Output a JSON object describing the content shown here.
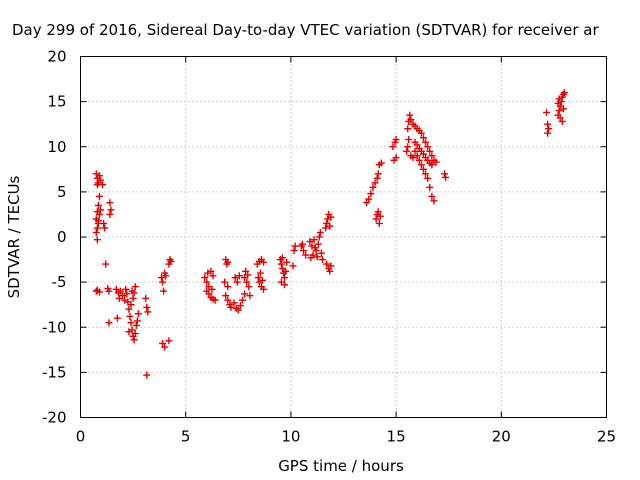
{
  "chart_data": {
    "type": "scatter",
    "title": "Day 299 of 2016, Sidereal Day-to-day VTEC variation (SDTVAR) for receiver ar",
    "xlabel": "GPS time / hours",
    "ylabel": "SDTVAR / TECUs",
    "xlim": [
      0,
      25
    ],
    "ylim": [
      -20,
      20
    ],
    "xticks": [
      "0",
      "5",
      "10",
      "15",
      "20",
      "25"
    ],
    "yticks": [
      "20",
      "15",
      "10",
      "5",
      "0",
      "-5",
      "-10",
      "-15",
      "-20"
    ],
    "grid": true,
    "marker": "plus",
    "color": "#e00000",
    "series": [
      {
        "points": [
          [
            0.75,
            7.0
          ],
          [
            0.8,
            6.5
          ],
          [
            0.85,
            6.0
          ],
          [
            0.9,
            6.8
          ],
          [
            0.95,
            6.3
          ],
          [
            0.8,
            5.8
          ],
          [
            0.9,
            4.5
          ],
          [
            0.85,
            3.5
          ],
          [
            0.8,
            2.8
          ],
          [
            0.75,
            2.0
          ],
          [
            0.85,
            1.5
          ],
          [
            0.8,
            1.0
          ],
          [
            0.75,
            0.5
          ],
          [
            0.8,
            -0.3
          ],
          [
            0.85,
            1.8
          ],
          [
            0.9,
            2.5
          ],
          [
            0.95,
            3.0
          ],
          [
            0.8,
            -5.9
          ],
          [
            0.9,
            -6.1
          ],
          [
            0.75,
            -6.0
          ],
          [
            1.05,
            5.8
          ],
          [
            1.1,
            1.5
          ],
          [
            1.15,
            1.0
          ],
          [
            1.2,
            -3.0
          ],
          [
            1.3,
            -5.7
          ],
          [
            1.35,
            -6.0
          ],
          [
            1.4,
            3.8
          ],
          [
            1.45,
            3.0
          ],
          [
            1.4,
            2.5
          ],
          [
            1.35,
            -9.5
          ],
          [
            1.7,
            -5.8
          ],
          [
            1.8,
            -6.2
          ],
          [
            1.85,
            -6.8
          ],
          [
            1.75,
            -9.0
          ],
          [
            1.9,
            -6.0
          ],
          [
            2.0,
            -6.5
          ],
          [
            2.1,
            -7.0
          ],
          [
            2.15,
            -5.8
          ],
          [
            2.2,
            -6.3
          ],
          [
            2.25,
            -7.2
          ],
          [
            2.3,
            -8.0
          ],
          [
            2.35,
            -8.8
          ],
          [
            2.4,
            -9.5
          ],
          [
            2.45,
            -10.3
          ],
          [
            2.5,
            -11.0
          ],
          [
            2.55,
            -11.4
          ],
          [
            2.6,
            -10.7
          ],
          [
            2.65,
            -9.8
          ],
          [
            2.7,
            -9.3
          ],
          [
            2.75,
            -8.5
          ],
          [
            2.5,
            -6.8
          ],
          [
            2.55,
            -6.2
          ],
          [
            2.6,
            -5.5
          ],
          [
            2.4,
            -7.5
          ],
          [
            2.45,
            -6.0
          ],
          [
            2.3,
            -10.5
          ],
          [
            3.1,
            -6.8
          ],
          [
            3.15,
            -7.8
          ],
          [
            3.2,
            -8.3
          ],
          [
            3.15,
            -15.3
          ],
          [
            3.85,
            -4.5
          ],
          [
            3.9,
            -5.0
          ],
          [
            3.95,
            -6.0
          ],
          [
            4.0,
            -4.0
          ],
          [
            4.05,
            -4.3
          ],
          [
            3.9,
            -11.8
          ],
          [
            4.0,
            -12.2
          ],
          [
            4.2,
            -11.5
          ],
          [
            4.2,
            -3.0
          ],
          [
            4.25,
            -2.5
          ],
          [
            4.3,
            -2.7
          ],
          [
            5.9,
            -4.5
          ],
          [
            6.0,
            -5.0
          ],
          [
            6.1,
            -5.5
          ],
          [
            6.05,
            -4.0
          ],
          [
            6.2,
            -3.8
          ],
          [
            6.3,
            -4.3
          ],
          [
            6.1,
            -6.3
          ],
          [
            6.2,
            -6.7
          ],
          [
            6.3,
            -6.9
          ],
          [
            6.4,
            -7.0
          ],
          [
            6.0,
            -6.0
          ],
          [
            6.25,
            -5.8
          ],
          [
            6.9,
            -2.5
          ],
          [
            6.95,
            -3.0
          ],
          [
            7.0,
            -2.8
          ],
          [
            6.85,
            -5.0
          ],
          [
            7.0,
            -5.5
          ],
          [
            6.9,
            -6.5
          ],
          [
            7.0,
            -7.0
          ],
          [
            7.1,
            -7.5
          ],
          [
            7.15,
            -7.8
          ],
          [
            7.3,
            -7.3
          ],
          [
            7.4,
            -7.9
          ],
          [
            7.5,
            -8.1
          ],
          [
            7.6,
            -7.6
          ],
          [
            7.7,
            -7.0
          ],
          [
            7.35,
            -4.5
          ],
          [
            7.45,
            -5.0
          ],
          [
            7.55,
            -4.3
          ],
          [
            7.8,
            -4.5
          ],
          [
            7.9,
            -5.0
          ],
          [
            8.0,
            -5.5
          ],
          [
            7.85,
            -3.8
          ],
          [
            7.95,
            -4.2
          ],
          [
            8.05,
            -6.5
          ],
          [
            7.8,
            -6.3
          ],
          [
            8.4,
            -3.0
          ],
          [
            8.5,
            -2.7
          ],
          [
            8.6,
            -2.5
          ],
          [
            8.7,
            -2.8
          ],
          [
            8.45,
            -4.5
          ],
          [
            8.5,
            -5.0
          ],
          [
            8.6,
            -5.5
          ],
          [
            8.7,
            -5.8
          ],
          [
            8.55,
            -4.0
          ],
          [
            8.65,
            -4.8
          ],
          [
            9.5,
            -2.5
          ],
          [
            9.55,
            -3.0
          ],
          [
            9.6,
            -3.5
          ],
          [
            9.65,
            -4.0
          ],
          [
            9.7,
            -4.5
          ],
          [
            9.55,
            -5.0
          ],
          [
            9.75,
            -3.8
          ],
          [
            9.8,
            -2.8
          ],
          [
            9.6,
            -2.3
          ],
          [
            9.7,
            -5.3
          ],
          [
            10.2,
            -1.0
          ],
          [
            10.15,
            -1.5
          ],
          [
            10.1,
            -3.2
          ],
          [
            10.5,
            -1.0
          ],
          [
            10.6,
            -1.5
          ],
          [
            10.55,
            -0.8
          ],
          [
            10.7,
            -2.0
          ],
          [
            10.9,
            -0.5
          ],
          [
            11.0,
            -1.0
          ],
          [
            11.1,
            -0.3
          ],
          [
            11.05,
            -2.0
          ],
          [
            11.2,
            -1.5
          ],
          [
            11.3,
            -0.8
          ],
          [
            11.35,
            0.0
          ],
          [
            11.4,
            0.5
          ],
          [
            11.45,
            -1.8
          ],
          [
            11.5,
            -2.5
          ],
          [
            11.25,
            -2.2
          ],
          [
            11.15,
            -1.2
          ],
          [
            10.95,
            -2.3
          ],
          [
            11.65,
            1.0
          ],
          [
            11.7,
            1.5
          ],
          [
            11.75,
            2.0
          ],
          [
            11.8,
            2.5
          ],
          [
            11.85,
            1.2
          ],
          [
            11.9,
            2.2
          ],
          [
            11.7,
            -3.0
          ],
          [
            11.8,
            -3.5
          ],
          [
            11.85,
            -3.8
          ],
          [
            11.9,
            -3.2
          ],
          [
            13.6,
            3.8
          ],
          [
            13.7,
            4.2
          ],
          [
            13.8,
            4.8
          ],
          [
            13.9,
            5.5
          ],
          [
            14.0,
            6.0
          ],
          [
            14.1,
            6.5
          ],
          [
            14.15,
            7.0
          ],
          [
            14.2,
            8.0
          ],
          [
            14.3,
            8.2
          ],
          [
            14.05,
            2.0
          ],
          [
            14.1,
            2.5
          ],
          [
            14.15,
            2.8
          ],
          [
            14.2,
            1.5
          ],
          [
            14.25,
            2.3
          ],
          [
            14.85,
            10.0
          ],
          [
            14.95,
            10.5
          ],
          [
            15.0,
            10.8
          ],
          [
            14.9,
            8.5
          ],
          [
            15.0,
            8.8
          ],
          [
            15.5,
            9.5
          ],
          [
            15.55,
            10.0
          ],
          [
            15.6,
            10.8
          ],
          [
            15.55,
            12.0
          ],
          [
            15.6,
            12.8
          ],
          [
            15.65,
            13.5
          ],
          [
            15.7,
            13.0
          ],
          [
            15.8,
            12.5
          ],
          [
            15.9,
            12.3
          ],
          [
            16.0,
            12.0
          ],
          [
            16.1,
            11.8
          ],
          [
            16.2,
            11.5
          ],
          [
            16.3,
            11.0
          ],
          [
            16.4,
            10.5
          ],
          [
            16.5,
            10.0
          ],
          [
            16.6,
            9.5
          ],
          [
            16.7,
            9.0
          ],
          [
            16.8,
            8.5
          ],
          [
            15.7,
            9.0
          ],
          [
            15.8,
            8.8
          ],
          [
            15.9,
            9.5
          ],
          [
            16.0,
            9.0
          ],
          [
            16.1,
            8.5
          ],
          [
            16.2,
            8.0
          ],
          [
            16.3,
            7.5
          ],
          [
            16.4,
            7.0
          ],
          [
            16.5,
            6.5
          ],
          [
            16.6,
            5.5
          ],
          [
            16.7,
            4.5
          ],
          [
            16.8,
            4.0
          ],
          [
            15.9,
            10.5
          ],
          [
            16.0,
            10.2
          ],
          [
            16.1,
            9.8
          ],
          [
            16.2,
            9.5
          ],
          [
            16.3,
            9.2
          ],
          [
            16.4,
            8.8
          ],
          [
            16.5,
            8.5
          ],
          [
            16.6,
            8.2
          ],
          [
            16.7,
            8.0
          ],
          [
            16.9,
            8.3
          ],
          [
            17.3,
            7.0
          ],
          [
            17.35,
            6.6
          ],
          [
            22.15,
            13.8
          ],
          [
            22.2,
            12.5
          ],
          [
            22.25,
            12.0
          ],
          [
            22.2,
            11.5
          ],
          [
            22.7,
            13.5
          ],
          [
            22.75,
            14.0
          ],
          [
            22.8,
            14.5
          ],
          [
            22.85,
            15.0
          ],
          [
            22.9,
            15.5
          ],
          [
            22.95,
            15.8
          ],
          [
            22.8,
            13.2
          ],
          [
            22.9,
            12.8
          ],
          [
            22.95,
            14.2
          ],
          [
            22.7,
            14.8
          ],
          [
            22.75,
            15.3
          ],
          [
            23.0,
            16.0
          ]
        ]
      }
    ]
  }
}
